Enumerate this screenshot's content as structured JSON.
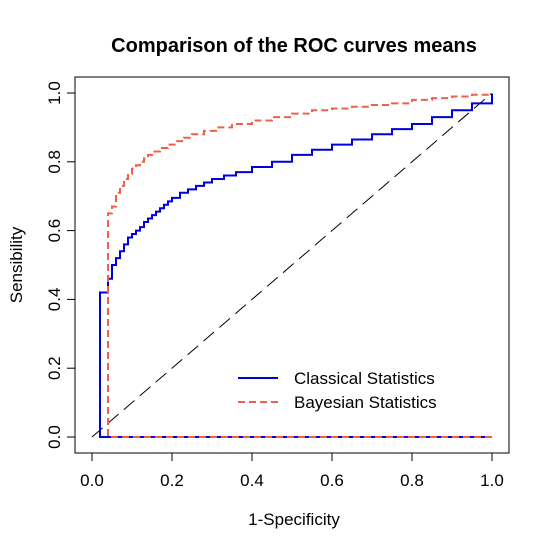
{
  "chart_data": {
    "type": "line",
    "title": "Comparison of the ROC curves means",
    "xlabel": "1-Specificity",
    "ylabel": "Sensibility",
    "xlim": [
      0,
      1
    ],
    "ylim": [
      0,
      1
    ],
    "x_ticks": [
      0.0,
      0.2,
      0.4,
      0.6,
      0.8,
      1.0
    ],
    "y_ticks": [
      0.0,
      0.2,
      0.4,
      0.6,
      0.8,
      1.0
    ],
    "x_tick_labels": [
      "0.0",
      "0.2",
      "0.4",
      "0.6",
      "0.8",
      "1.0"
    ],
    "y_tick_labels": [
      "0.0",
      "0.2",
      "0.4",
      "0.6",
      "0.8",
      "1.0"
    ],
    "grid": false,
    "legend_position": "bottom-right",
    "series": [
      {
        "name": "Classical Statistics",
        "color": "#0000dd",
        "line_style": "solid",
        "step": true,
        "x": [
          1.0,
          0.02,
          0.02,
          0.04,
          0.05,
          0.06,
          0.07,
          0.08,
          0.09,
          0.1,
          0.11,
          0.12,
          0.13,
          0.14,
          0.15,
          0.16,
          0.17,
          0.18,
          0.19,
          0.2,
          0.22,
          0.24,
          0.26,
          0.28,
          0.3,
          0.33,
          0.36,
          0.4,
          0.45,
          0.5,
          0.55,
          0.6,
          0.65,
          0.7,
          0.75,
          0.8,
          0.85,
          0.9,
          0.95,
          1.0
        ],
        "y": [
          0.0,
          0.0,
          0.42,
          0.46,
          0.5,
          0.52,
          0.54,
          0.56,
          0.58,
          0.59,
          0.6,
          0.61,
          0.625,
          0.635,
          0.645,
          0.655,
          0.665,
          0.675,
          0.685,
          0.695,
          0.71,
          0.72,
          0.73,
          0.74,
          0.75,
          0.76,
          0.77,
          0.785,
          0.8,
          0.82,
          0.835,
          0.85,
          0.865,
          0.88,
          0.895,
          0.91,
          0.93,
          0.95,
          0.97,
          1.0
        ]
      },
      {
        "name": "Bayesian Statistics",
        "color": "#f06048",
        "line_style": "dashed",
        "step": true,
        "x": [
          1.0,
          0.04,
          0.04,
          0.05,
          0.06,
          0.07,
          0.08,
          0.09,
          0.1,
          0.11,
          0.12,
          0.13,
          0.14,
          0.15,
          0.17,
          0.19,
          0.21,
          0.23,
          0.25,
          0.28,
          0.31,
          0.35,
          0.4,
          0.45,
          0.5,
          0.55,
          0.6,
          0.65,
          0.7,
          0.75,
          0.8,
          0.85,
          0.9,
          0.95,
          1.0
        ],
        "y": [
          0.0,
          0.0,
          0.65,
          0.67,
          0.71,
          0.73,
          0.75,
          0.765,
          0.78,
          0.79,
          0.8,
          0.81,
          0.82,
          0.83,
          0.84,
          0.85,
          0.86,
          0.87,
          0.88,
          0.89,
          0.9,
          0.91,
          0.92,
          0.93,
          0.94,
          0.95,
          0.955,
          0.96,
          0.965,
          0.97,
          0.98,
          0.985,
          0.99,
          0.995,
          1.0
        ]
      },
      {
        "name": "",
        "color": "#000000",
        "line_style": "long-dash",
        "step": false,
        "x": [
          0.0,
          1.0
        ],
        "y": [
          0.0,
          1.0
        ]
      }
    ]
  }
}
